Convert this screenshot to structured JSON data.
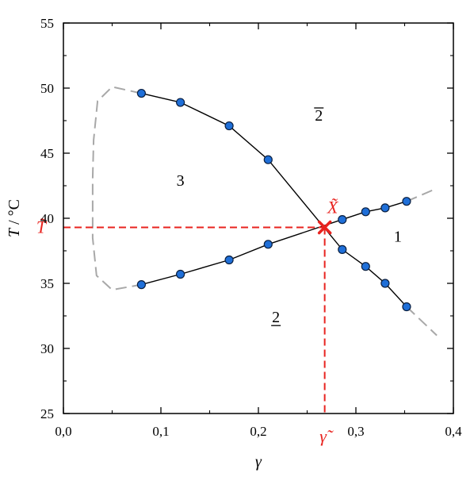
{
  "chart_data": {
    "type": "line",
    "xlabel": "γ",
    "ylabel": {
      "var": "T",
      "unit": " / °C"
    },
    "xlim": [
      0.0,
      0.4
    ],
    "ylim": [
      25,
      55
    ],
    "x_ticks": [
      0.0,
      0.1,
      0.2,
      0.3,
      0.4
    ],
    "x_tick_labels": [
      "0,0",
      "0,1",
      "0,2",
      "0,3",
      "0,4"
    ],
    "y_ticks": [
      25,
      30,
      35,
      40,
      45,
      50,
      55
    ],
    "y_tick_labels": [
      "25",
      "30",
      "35",
      "40",
      "45",
      "50",
      "55"
    ],
    "grid": false,
    "series": [
      {
        "id": "upper-boundary",
        "style": "solid",
        "x": [
          0.08,
          0.12,
          0.17,
          0.21,
          0.286,
          0.31,
          0.33,
          0.352
        ],
        "y": [
          49.6,
          48.9,
          47.1,
          44.5,
          37.6,
          36.3,
          35.0,
          33.2
        ]
      },
      {
        "id": "lower-boundary",
        "style": "solid",
        "x": [
          0.08,
          0.12,
          0.17,
          0.21,
          0.286,
          0.31,
          0.33,
          0.352
        ],
        "y": [
          34.9,
          35.7,
          36.8,
          38.0,
          39.9,
          40.5,
          40.8,
          41.3
        ]
      }
    ],
    "extrapolations": [
      {
        "id": "loop-left",
        "style": "dashed",
        "color": "#a8a8a8",
        "x": [
          0.08,
          0.05,
          0.035,
          0.031,
          0.03,
          0.03,
          0.034,
          0.05,
          0.08
        ],
        "y": [
          49.6,
          50.1,
          49.0,
          46.0,
          43.0,
          38.5,
          35.6,
          34.5,
          34.9
        ]
      },
      {
        "id": "upper-right-extension",
        "style": "dashed",
        "color": "#a8a8a8",
        "x": [
          0.352,
          0.383
        ],
        "y": [
          41.3,
          42.3
        ]
      },
      {
        "id": "lower-right-extension",
        "style": "dashed",
        "color": "#a8a8a8",
        "x": [
          0.352,
          0.383
        ],
        "y": [
          33.2,
          31.0
        ]
      }
    ],
    "intersection": {
      "x": 0.268,
      "y": 39.3,
      "label": "X̃",
      "color": "#e8231f"
    },
    "intersection_axis_labels": {
      "x_label": "γ̃",
      "y_label": "T̃"
    },
    "regions": [
      {
        "label": "3",
        "x": 0.12,
        "y": 42.5
      },
      {
        "label": "2",
        "decoration": "overline",
        "x": 0.262,
        "y": 47.5
      },
      {
        "label": "1",
        "x": 0.343,
        "y": 38.2
      },
      {
        "label": "2",
        "decoration": "underline",
        "x": 0.218,
        "y": 32.0
      }
    ],
    "colors": {
      "marker_fill": "#1f6fd8",
      "marker_stroke": "#0a1f40",
      "curve": "#000000",
      "dashed_extension": "#a8a8a8",
      "highlight": "#e8231f"
    }
  }
}
